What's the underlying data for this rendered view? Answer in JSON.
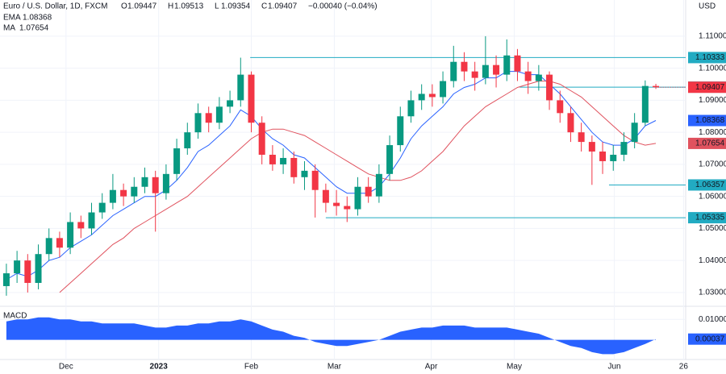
{
  "chart_data": {
    "type": "candlestick",
    "title": "Euro / U.S. Dollar, 1D, FXCM",
    "ohlc_labels": [
      "O",
      "H",
      "L",
      "C"
    ],
    "change": "−0.00040 (−0.04%)",
    "currency": "USD",
    "xlim": [
      -0.6,
      63.8
    ],
    "xticks": [
      {
        "value": 5.6,
        "label": "Dec"
      },
      {
        "value": 14.3,
        "label": "2023"
      },
      {
        "value": 23,
        "label": "Feb"
      },
      {
        "value": 30.8,
        "label": "Mar"
      },
      {
        "value": 39.9,
        "label": "Apr"
      },
      {
        "value": 47.7,
        "label": "May"
      },
      {
        "value": 57.1,
        "label": "Jun"
      },
      {
        "value": 63.6,
        "label": "26"
      }
    ],
    "ylim": [
      1.0257,
      1.1213
    ],
    "yticks": [
      {
        "value": 1.03,
        "label": "1.03000"
      },
      {
        "value": 1.04,
        "label": "1.04000"
      },
      {
        "value": 1.05,
        "label": "1.05000"
      },
      {
        "value": 1.06,
        "label": "1.06000"
      },
      {
        "value": 1.07,
        "label": "1.07000"
      },
      {
        "value": 1.08,
        "label": "1.08000"
      },
      {
        "value": 1.09,
        "label": "1.09000"
      },
      {
        "value": 1.1,
        "label": "1.10000"
      },
      {
        "value": 1.11,
        "label": "1.11000"
      }
    ],
    "candles": {
      "up_color": "#089981",
      "down_color": "#f23645",
      "open": [
        1.032,
        1.036,
        1.04,
        1.033,
        1.042,
        1.047,
        1.044,
        1.052,
        1.05,
        1.055,
        1.058,
        1.062,
        1.06,
        1.063,
        1.066,
        1.061,
        1.067,
        1.075,
        1.08,
        1.086,
        1.083,
        1.088,
        1.09,
        1.098,
        1.083,
        1.073,
        1.07,
        1.072,
        1.066,
        1.068,
        1.062,
        1.058,
        1.057,
        1.056,
        1.063,
        1.06,
        1.067,
        1.076,
        1.085,
        1.09,
        1.092,
        1.091,
        1.096,
        1.102,
        1.099,
        1.097,
        1.101,
        1.098,
        1.104,
        1.099,
        1.096,
        1.098,
        1.09,
        1.086,
        1.08,
        1.077,
        1.074,
        1.071,
        1.073,
        1.077,
        1.083,
        1.09447
      ],
      "high": [
        1.039,
        1.043,
        1.042,
        1.045,
        1.05,
        1.049,
        1.055,
        1.054,
        1.058,
        1.061,
        1.067,
        1.064,
        1.066,
        1.069,
        1.068,
        1.07,
        1.078,
        1.083,
        1.089,
        1.088,
        1.091,
        1.093,
        1.1033,
        1.099,
        1.085,
        1.076,
        1.075,
        1.074,
        1.071,
        1.07,
        1.064,
        1.062,
        1.06,
        1.066,
        1.066,
        1.07,
        1.079,
        1.088,
        1.093,
        1.095,
        1.095,
        1.099,
        1.107,
        1.105,
        1.102,
        1.11,
        1.104,
        1.109,
        1.106,
        1.102,
        1.101,
        1.099,
        1.093,
        1.088,
        1.083,
        1.079,
        1.077,
        1.076,
        1.08,
        1.086,
        1.0962,
        1.09513
      ],
      "low": [
        1.029,
        1.033,
        1.03,
        1.031,
        1.04,
        1.041,
        1.042,
        1.047,
        1.048,
        1.053,
        1.056,
        1.057,
        1.058,
        1.061,
        1.049,
        1.059,
        1.065,
        1.073,
        1.078,
        1.08,
        1.081,
        1.086,
        1.088,
        1.08,
        1.07,
        1.068,
        1.067,
        1.064,
        1.062,
        1.0534,
        1.055,
        1.054,
        1.052,
        1.054,
        1.058,
        1.058,
        1.065,
        1.074,
        1.083,
        1.087,
        1.088,
        1.089,
        1.094,
        1.096,
        1.093,
        1.095,
        1.094,
        1.096,
        1.096,
        1.092,
        1.093,
        1.087,
        1.083,
        1.077,
        1.074,
        1.0636,
        1.067,
        1.068,
        1.071,
        1.075,
        1.082,
        1.09354
      ],
      "close": [
        1.036,
        1.04,
        1.033,
        1.042,
        1.047,
        1.044,
        1.052,
        1.05,
        1.055,
        1.058,
        1.062,
        1.06,
        1.063,
        1.066,
        1.061,
        1.067,
        1.075,
        1.08,
        1.086,
        1.083,
        1.088,
        1.09,
        1.098,
        1.083,
        1.073,
        1.07,
        1.072,
        1.066,
        1.068,
        1.062,
        1.058,
        1.057,
        1.056,
        1.063,
        1.06,
        1.067,
        1.076,
        1.085,
        1.09,
        1.092,
        1.091,
        1.096,
        1.102,
        1.099,
        1.097,
        1.101,
        1.098,
        1.104,
        1.099,
        1.096,
        1.098,
        1.09,
        1.086,
        1.08,
        1.077,
        1.074,
        1.071,
        1.073,
        1.077,
        1.083,
        1.09447,
        1.09407
      ]
    },
    "series": [
      {
        "name": "EMA",
        "color": "#2962ff",
        "values": [
          1.034,
          1.036,
          1.035,
          1.037,
          1.04,
          1.041,
          1.044,
          1.046,
          1.048,
          1.051,
          1.054,
          1.056,
          1.058,
          1.06,
          1.06,
          1.062,
          1.065,
          1.069,
          1.074,
          1.076,
          1.079,
          1.082,
          1.087,
          1.085,
          1.081,
          1.078,
          1.076,
          1.073,
          1.072,
          1.069,
          1.066,
          1.063,
          1.061,
          1.061,
          1.061,
          1.063,
          1.067,
          1.072,
          1.078,
          1.082,
          1.085,
          1.088,
          1.092,
          1.094,
          1.095,
          1.097,
          1.097,
          1.099,
          1.099,
          1.098,
          1.098,
          1.095,
          1.092,
          1.088,
          1.084,
          1.08,
          1.077,
          1.076,
          1.076,
          1.078,
          1.082,
          1.08368
        ]
      },
      {
        "name": "MA",
        "color": "#e0525e",
        "values": [
          null,
          null,
          null,
          null,
          null,
          1.03,
          1.033,
          1.036,
          1.039,
          1.042,
          1.045,
          1.047,
          1.05,
          1.052,
          1.054,
          1.056,
          1.058,
          1.06,
          1.063,
          1.066,
          1.069,
          1.072,
          1.075,
          1.078,
          1.08,
          1.081,
          1.081,
          1.08,
          1.079,
          1.077,
          1.075,
          1.073,
          1.071,
          1.069,
          1.067,
          1.066,
          1.065,
          1.065,
          1.066,
          1.068,
          1.071,
          1.074,
          1.078,
          1.082,
          1.085,
          1.088,
          1.09,
          1.092,
          1.094,
          1.095,
          1.096,
          1.096,
          1.095,
          1.093,
          1.091,
          1.088,
          1.085,
          1.082,
          1.079,
          1.077,
          1.076,
          1.07654
        ]
      }
    ],
    "levels": [
      {
        "value": 1.10333,
        "start": 22.9,
        "color": "#22abc2",
        "style": "solid"
      },
      {
        "value": 1.09411,
        "start": 48.2,
        "color": "#22abc2",
        "style": "solid"
      },
      {
        "value": 1.06357,
        "start": 56.6,
        "color": "#22abc2",
        "style": "solid"
      },
      {
        "value": 1.05335,
        "start": 30.0,
        "color": "#22abc2",
        "style": "solid"
      },
      {
        "value": 1.09407,
        "start": 61.2,
        "color": "#f23645",
        "style": "dotted"
      }
    ],
    "macd": {
      "name": "MACD",
      "color": "#2962ff",
      "ylim": [
        -0.0096,
        0.0164
      ],
      "yticks": [
        {
          "value": 0.01,
          "label": "0.01000"
        }
      ],
      "values": [
        0.009,
        0.01,
        0.01,
        0.011,
        0.011,
        0.01,
        0.01,
        0.009,
        0.009,
        0.008,
        0.008,
        0.008,
        0.008,
        0.007,
        0.006,
        0.006,
        0.007,
        0.007,
        0.008,
        0.008,
        0.009,
        0.009,
        0.01,
        0.009,
        0.007,
        0.005,
        0.004,
        0.002,
        0.001,
        -0.001,
        -0.002,
        -0.003,
        -0.003,
        -0.002,
        -0.001,
        0.0,
        0.002,
        0.004,
        0.005,
        0.006,
        0.006,
        0.007,
        0.007,
        0.007,
        0.006,
        0.006,
        0.006,
        0.006,
        0.005,
        0.004,
        0.003,
        0.001,
        -0.001,
        -0.003,
        -0.004,
        -0.006,
        -0.007,
        -0.007,
        -0.006,
        -0.004,
        -0.002,
        0.00037
      ]
    }
  }
}
